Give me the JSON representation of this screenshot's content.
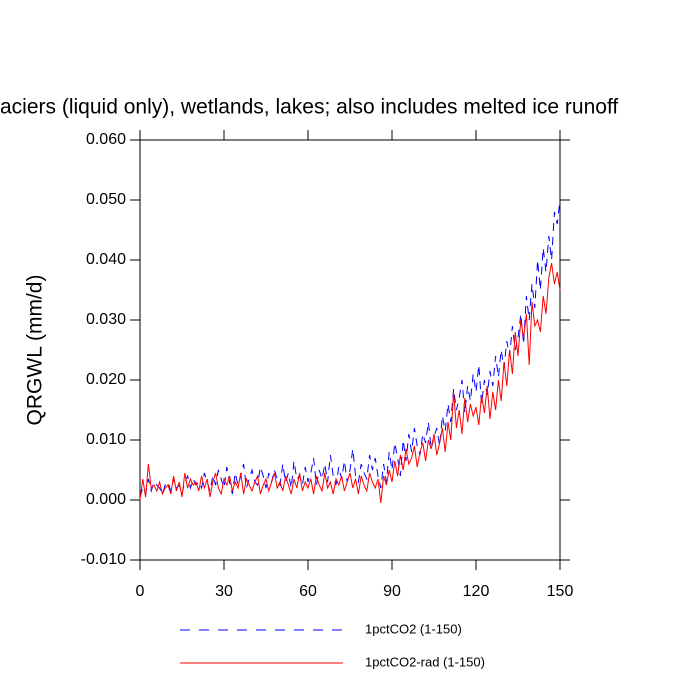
{
  "chart_data": {
    "type": "line",
    "title": "aciers (liquid only), wetlands, lakes; also includes melted ice runoff",
    "y_label": "QRGWL  (mm/d)",
    "x": [
      0,
      1,
      2,
      3,
      4,
      5,
      6,
      7,
      8,
      9,
      10,
      11,
      12,
      13,
      14,
      15,
      16,
      17,
      18,
      19,
      20,
      21,
      22,
      23,
      24,
      25,
      26,
      27,
      28,
      29,
      30,
      31,
      32,
      33,
      34,
      35,
      36,
      37,
      38,
      39,
      40,
      41,
      42,
      43,
      44,
      45,
      46,
      47,
      48,
      49,
      50,
      51,
      52,
      53,
      54,
      55,
      56,
      57,
      58,
      59,
      60,
      61,
      62,
      63,
      64,
      65,
      66,
      67,
      68,
      69,
      70,
      71,
      72,
      73,
      74,
      75,
      76,
      77,
      78,
      79,
      80,
      81,
      82,
      83,
      84,
      85,
      86,
      87,
      88,
      89,
      90,
      91,
      92,
      93,
      94,
      95,
      96,
      97,
      98,
      99,
      100,
      101,
      102,
      103,
      104,
      105,
      106,
      107,
      108,
      109,
      110,
      111,
      112,
      113,
      114,
      115,
      116,
      117,
      118,
      119,
      120,
      121,
      122,
      123,
      124,
      125,
      126,
      127,
      128,
      129,
      130,
      131,
      132,
      133,
      134,
      135,
      136,
      137,
      138,
      139,
      140,
      141,
      142,
      143,
      144,
      145,
      146,
      147,
      148,
      149,
      150
    ],
    "series": [
      {
        "name": "1pctCO2 (1-150)",
        "color": "#0000ff",
        "dash": true,
        "values": [
          0.0005,
          0.002,
          0.001,
          0.0035,
          0.0015,
          0.003,
          0.0025,
          0.002,
          0.001,
          0.0025,
          0.003,
          0.0015,
          0.0035,
          0.002,
          0.0025,
          0.001,
          0.003,
          0.004,
          0.002,
          0.0035,
          0.0025,
          0.003,
          0.002,
          0.0045,
          0.003,
          0.0015,
          0.004,
          0.0025,
          0.005,
          0.0035,
          0.002,
          0.0055,
          0.003,
          0.001,
          0.0045,
          0.0025,
          0.004,
          0.006,
          0.002,
          0.0035,
          0.005,
          0.003,
          0.0025,
          0.0055,
          0.004,
          0.002,
          0.0045,
          0.003,
          0.005,
          0.0035,
          0.0025,
          0.006,
          0.003,
          0.0045,
          0.002,
          0.0065,
          0.0035,
          0.004,
          0.0025,
          0.0055,
          0.003,
          0.0045,
          0.007,
          0.0025,
          0.005,
          0.0035,
          0.006,
          0.003,
          0.0075,
          0.004,
          0.0025,
          0.0055,
          0.0035,
          0.0065,
          0.003,
          0.005,
          0.0085,
          0.004,
          0.003,
          0.006,
          0.0045,
          0.0035,
          0.0075,
          0.005,
          0.007,
          0.004,
          0.002,
          0.006,
          0.003,
          0.008,
          0.005,
          0.0095,
          0.007,
          0.004,
          0.01,
          0.0065,
          0.011,
          0.008,
          0.012,
          0.009,
          0.0075,
          0.011,
          0.0095,
          0.013,
          0.0085,
          0.0105,
          0.012,
          0.009,
          0.014,
          0.0115,
          0.016,
          0.013,
          0.0185,
          0.015,
          0.017,
          0.02,
          0.0145,
          0.019,
          0.0165,
          0.021,
          0.018,
          0.0225,
          0.016,
          0.02,
          0.0175,
          0.0215,
          0.019,
          0.024,
          0.0205,
          0.025,
          0.022,
          0.0265,
          0.024,
          0.029,
          0.025,
          0.027,
          0.031,
          0.026,
          0.034,
          0.03,
          0.036,
          0.032,
          0.04,
          0.035,
          0.042,
          0.038,
          0.044,
          0.04,
          0.048,
          0.046,
          0.05
        ]
      },
      {
        "name": "1pctCO2-rad (1-150)",
        "color": "#ff0000",
        "dash": false,
        "values": [
          0.0,
          0.0035,
          0.0005,
          0.006,
          0.002,
          0.0025,
          0.0015,
          0.003,
          0.001,
          0.002,
          0.0025,
          0.001,
          0.004,
          0.0015,
          0.003,
          0.0005,
          0.0045,
          0.002,
          0.0035,
          0.0025,
          0.003,
          0.0015,
          0.004,
          0.002,
          0.0035,
          0.0005,
          0.003,
          0.0045,
          0.002,
          0.001,
          0.0035,
          0.0025,
          0.004,
          0.0015,
          0.003,
          0.002,
          0.0045,
          0.001,
          0.0035,
          0.0025,
          0.0015,
          0.003,
          0.004,
          0.001,
          0.0025,
          0.0035,
          0.0015,
          0.003,
          0.0045,
          0.002,
          0.003,
          0.0015,
          0.004,
          0.0025,
          0.001,
          0.0035,
          0.002,
          0.0045,
          0.0015,
          0.003,
          0.002,
          0.0035,
          0.001,
          0.004,
          0.0025,
          0.0015,
          0.0045,
          0.002,
          0.003,
          0.001,
          0.0035,
          0.0025,
          0.004,
          0.0015,
          0.003,
          0.0045,
          0.002,
          0.0035,
          0.001,
          0.004,
          0.0025,
          0.0015,
          0.0045,
          0.003,
          0.002,
          0.0035,
          -0.0005,
          0.004,
          0.0025,
          0.005,
          0.003,
          0.0065,
          0.004,
          0.0075,
          0.005,
          0.0085,
          0.006,
          0.007,
          0.009,
          0.0055,
          0.008,
          0.0095,
          0.0065,
          0.01,
          0.0085,
          0.011,
          0.0075,
          0.0095,
          0.012,
          0.008,
          0.013,
          0.01,
          0.018,
          0.012,
          0.015,
          0.011,
          0.017,
          0.013,
          0.016,
          0.014,
          0.0155,
          0.0125,
          0.0175,
          0.0145,
          0.019,
          0.0135,
          0.018,
          0.015,
          0.02,
          0.0165,
          0.023,
          0.019,
          0.025,
          0.021,
          0.028,
          0.024,
          0.03,
          0.027,
          0.031,
          0.0225,
          0.033,
          0.029,
          0.03,
          0.028,
          0.034,
          0.031,
          0.037,
          0.0395,
          0.036,
          0.038,
          0.035
        ]
      }
    ],
    "xlim": [
      0,
      150
    ],
    "xticks": [
      0,
      30,
      60,
      90,
      120,
      150
    ],
    "ylim": [
      -0.01,
      0.06
    ],
    "yticks": [
      {
        "value": -0.01,
        "label": "-0.010"
      },
      {
        "value": 0,
        "label": "0.000"
      },
      {
        "value": 0.01,
        "label": "0.010"
      },
      {
        "value": 0.02,
        "label": "0.020"
      },
      {
        "value": 0.03,
        "label": "0.030"
      },
      {
        "value": 0.04,
        "label": "0.040"
      },
      {
        "value": 0.05,
        "label": "0.050"
      },
      {
        "value": 0.06,
        "label": "0.060"
      }
    ]
  }
}
